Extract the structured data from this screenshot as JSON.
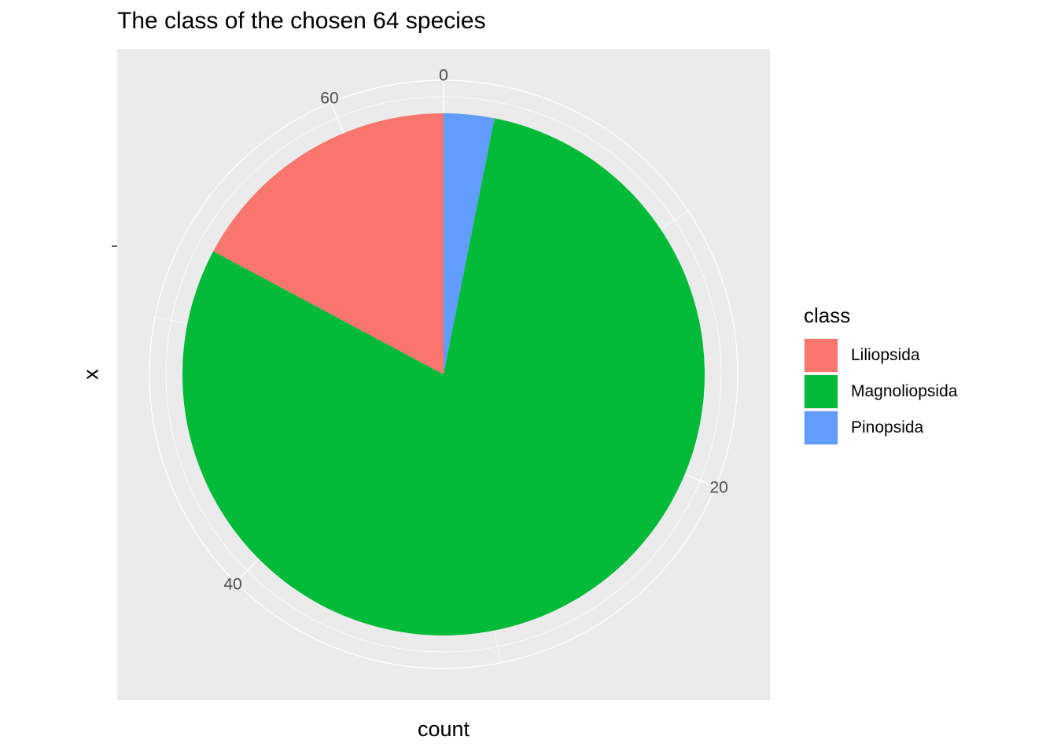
{
  "chart_data": {
    "type": "pie",
    "title": "The class of the chosen 64 species",
    "xlabel": "count",
    "ylabel": "x",
    "total": 64,
    "theta_ticks": [
      0,
      20,
      40,
      60
    ],
    "legend": {
      "title": "class",
      "position": "right"
    },
    "grid": true,
    "slices": [
      {
        "label": "Pinopsida",
        "value": 2,
        "color": "#619CFF"
      },
      {
        "label": "Magnoliopsida",
        "value": 51,
        "color": "#00BA38"
      },
      {
        "label": "Liliopsida",
        "value": 11,
        "color": "#F8766D"
      }
    ]
  }
}
